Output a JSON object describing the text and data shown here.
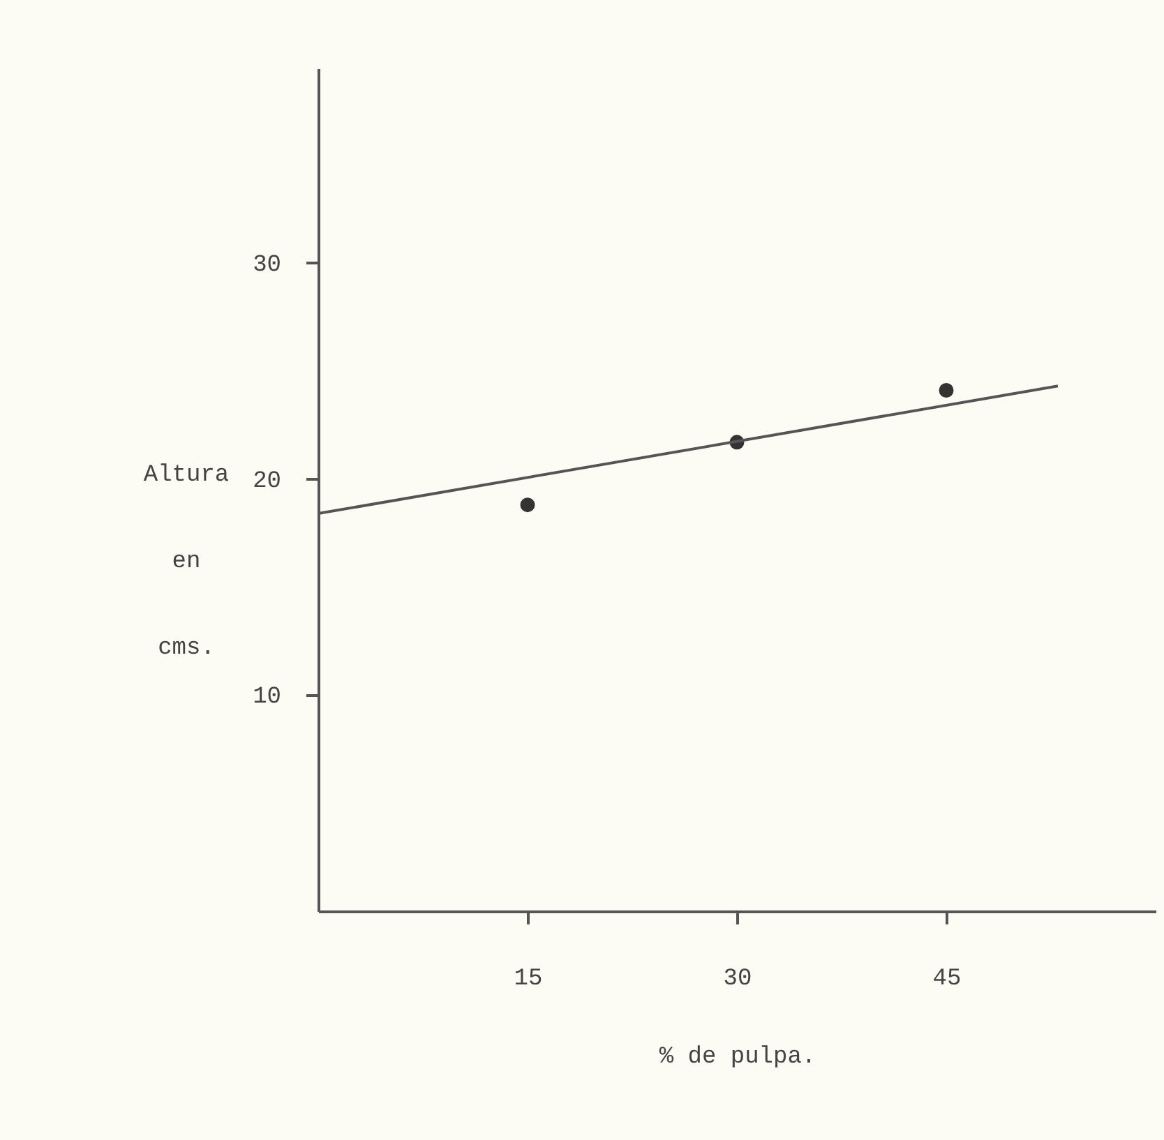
{
  "chart_data": {
    "type": "scatter",
    "xlabel": "% de pulpa.",
    "ylabel": "Altura en cms.",
    "x": [
      15,
      30,
      45
    ],
    "series": [
      {
        "color": "#333333",
        "marker": "circle",
        "values": [
          18.8,
          21.7,
          24.1
        ]
      },
      {
        "type": "line",
        "marker": "none",
        "color": "#555555",
        "x": [
          0,
          53
        ],
        "values": [
          18.4,
          24.3
        ]
      }
    ],
    "xlim": [
      0,
      60
    ],
    "ylim": [
      0,
      39
    ],
    "xticks": [
      15,
      30,
      45
    ],
    "yticks": [
      10,
      20,
      30
    ],
    "grid": false,
    "line_style": "solid"
  }
}
